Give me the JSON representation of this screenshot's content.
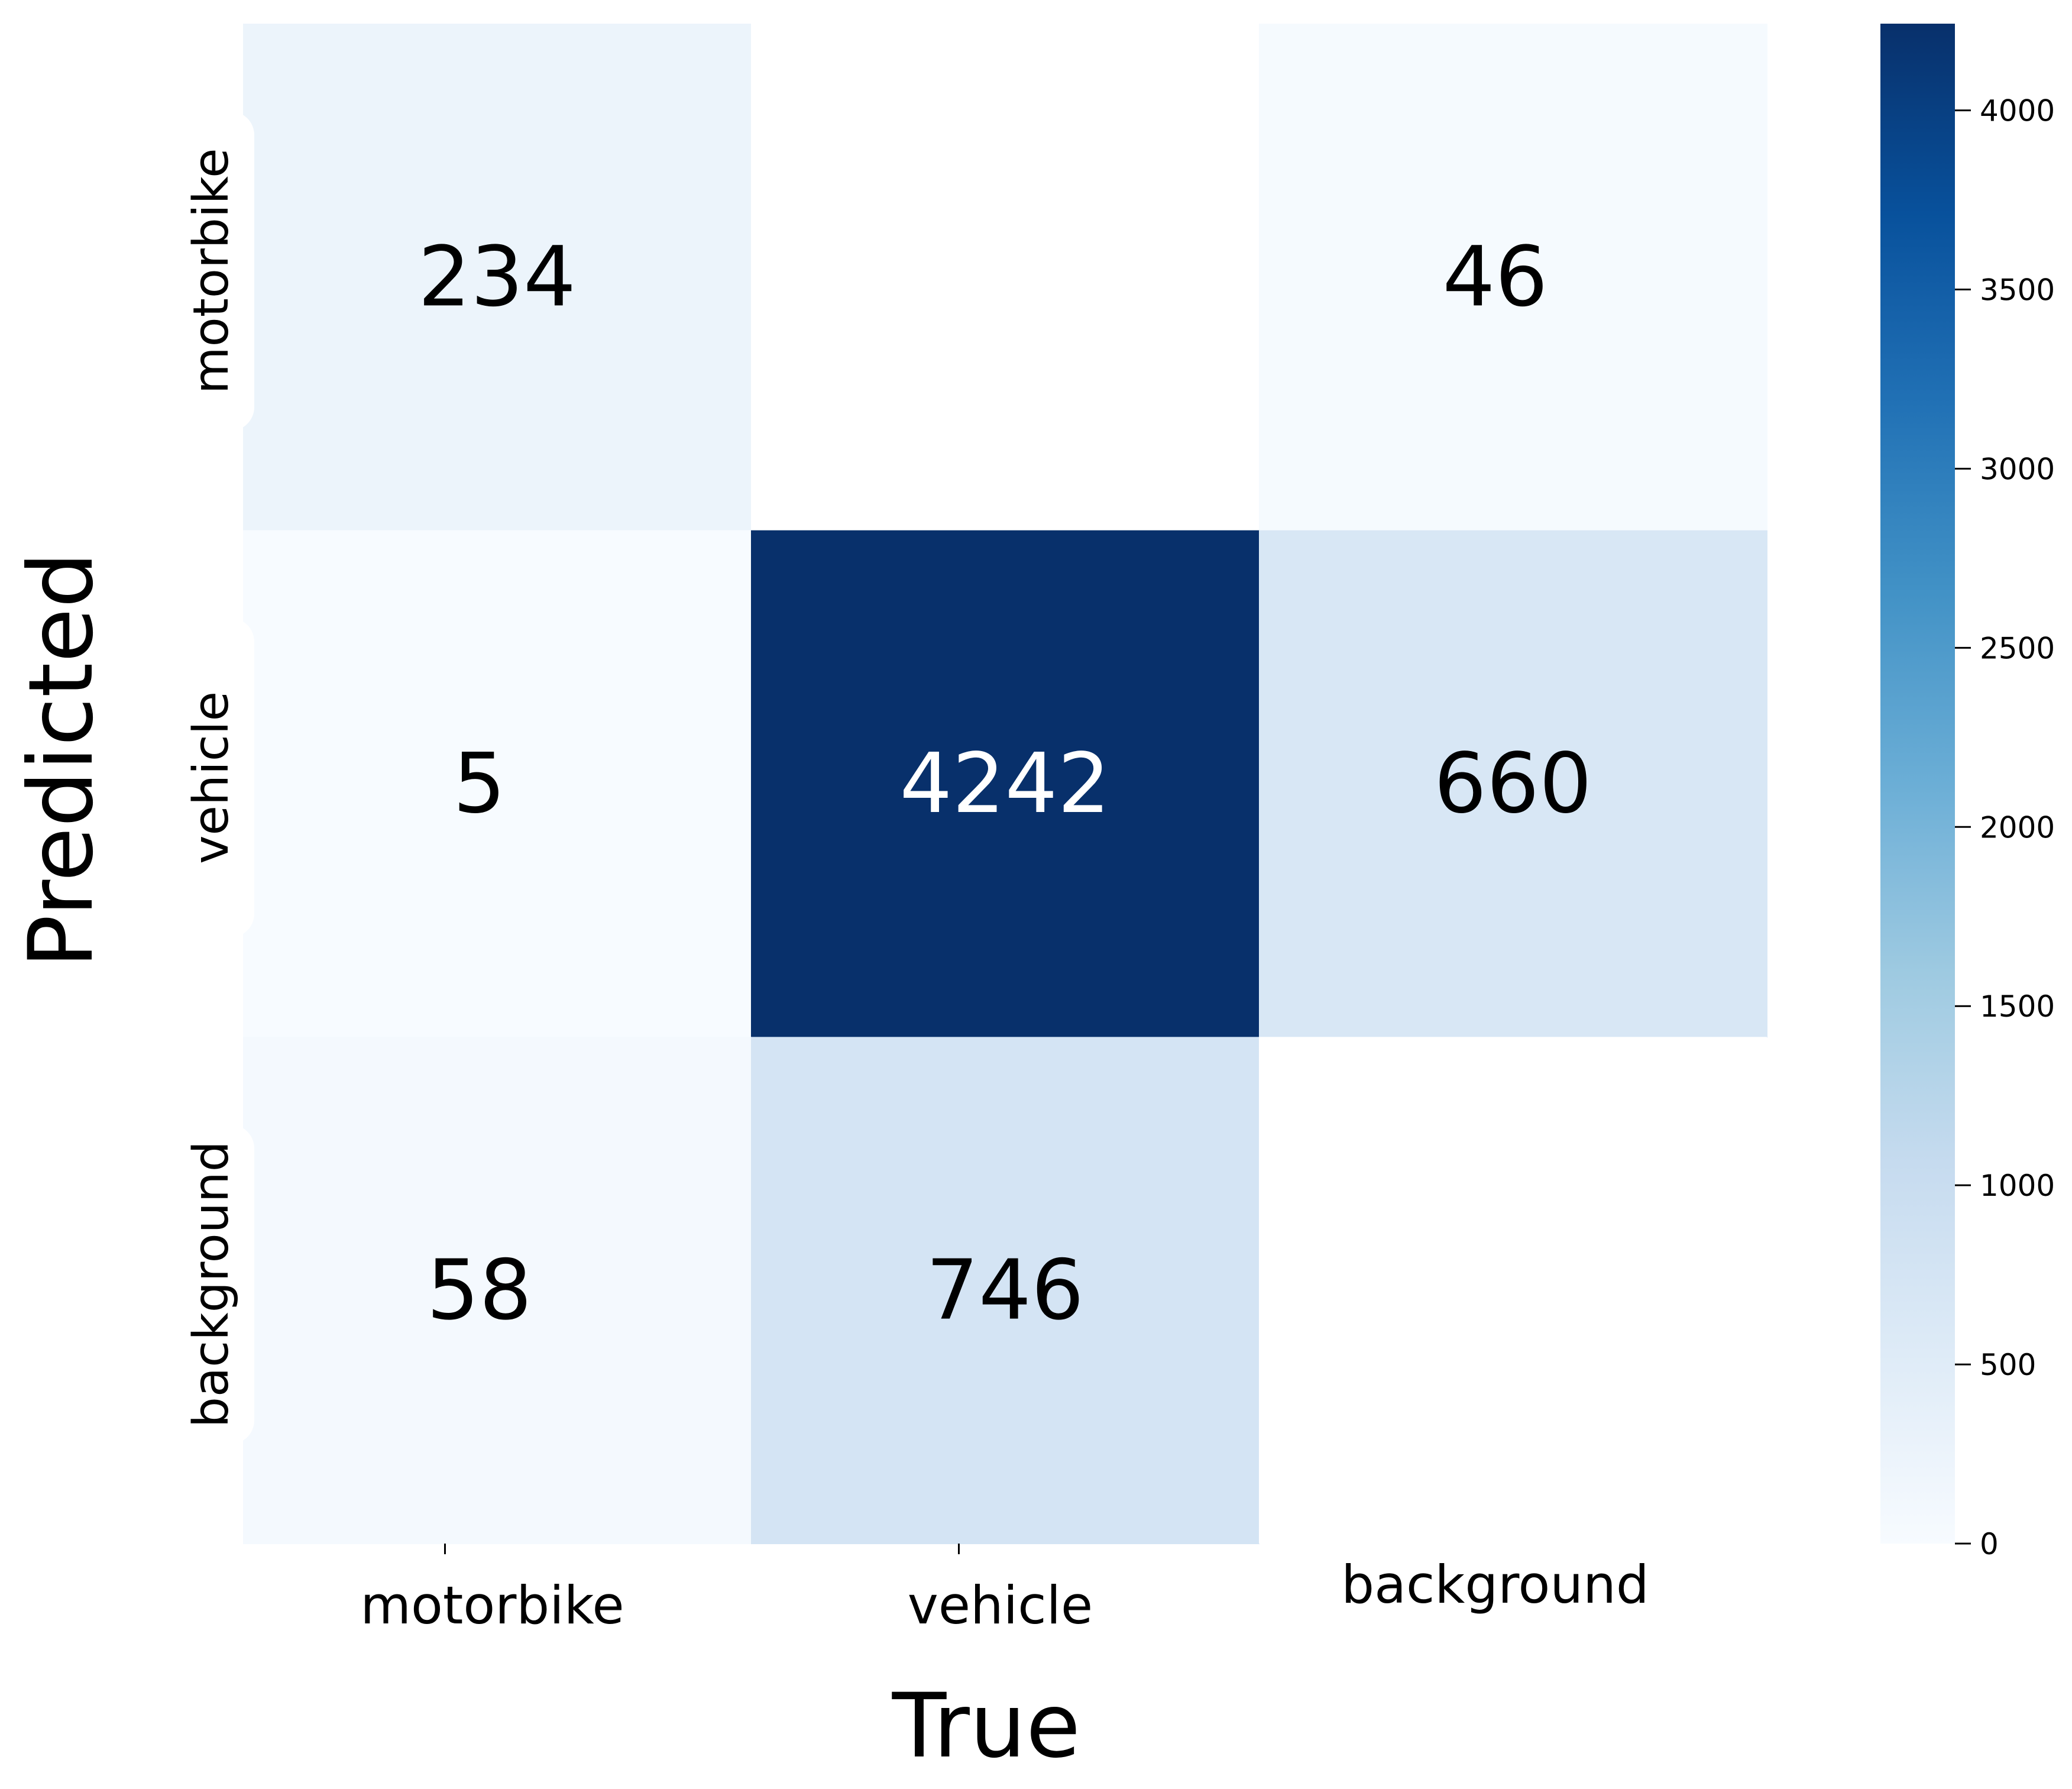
{
  "chart_data": {
    "type": "heatmap",
    "title": "",
    "xlabel": "True",
    "ylabel": "Predicted",
    "x_categories": [
      "motorbike",
      "vehicle",
      "background"
    ],
    "y_categories": [
      "motorbike",
      "vehicle",
      "background"
    ],
    "values": [
      [
        234,
        null,
        46
      ],
      [
        5,
        4242,
        660
      ],
      [
        58,
        746,
        null
      ]
    ],
    "colormap": "Blues",
    "colorbar": {
      "range": [
        0,
        4242
      ],
      "ticks": [
        0,
        500,
        1000,
        1500,
        2000,
        2500,
        3000,
        3500,
        4000
      ],
      "tick_labels": [
        "0",
        "500",
        "1000",
        "1500",
        "2000",
        "2500",
        "3000",
        "3500",
        "4000"
      ]
    },
    "empty_cell_color": "#ffffff",
    "grid": false
  }
}
